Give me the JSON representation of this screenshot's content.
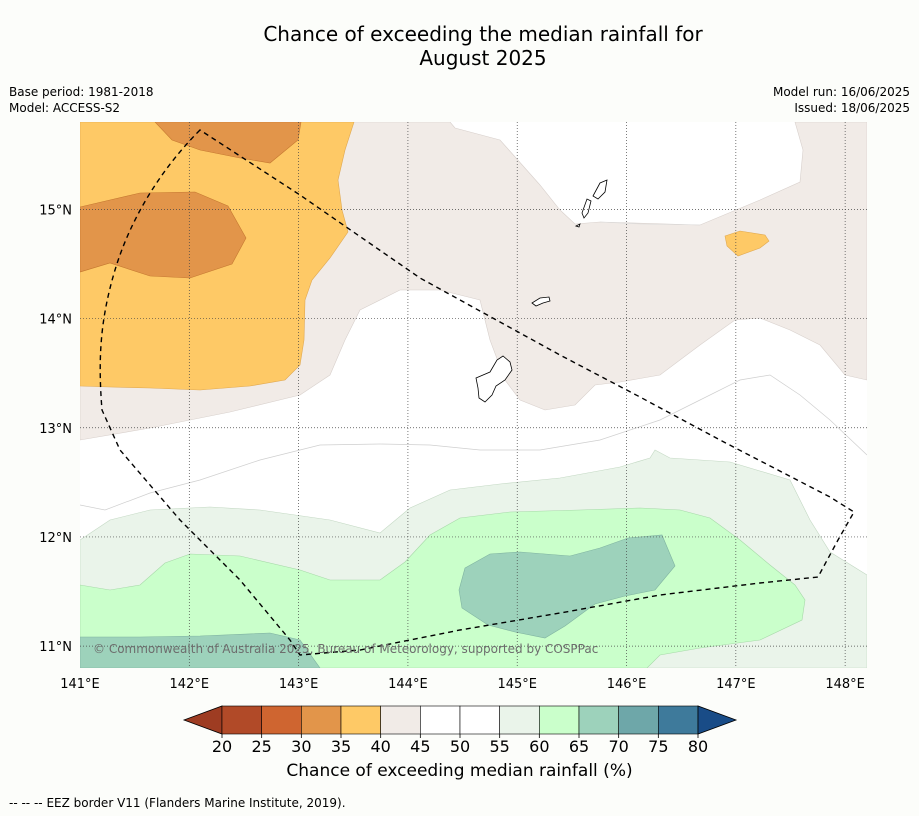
{
  "title": {
    "line1": "Chance of exceeding the median rainfall for",
    "line2": "August 2025"
  },
  "meta": {
    "base_period": "Base period: 1981-2018",
    "model": "Model: ACCESS-S2",
    "model_run": "Model run: 16/06/2025",
    "issued": "Issued: 18/06/2025"
  },
  "map": {
    "lon_range": [
      141.0,
      148.2
    ],
    "lat_range": [
      10.8,
      15.8
    ],
    "lon_ticks": [
      {
        "value": 141,
        "label": "141°E"
      },
      {
        "value": 142,
        "label": "142°E"
      },
      {
        "value": 143,
        "label": "143°E"
      },
      {
        "value": 144,
        "label": "144°E"
      },
      {
        "value": 145,
        "label": "145°E"
      },
      {
        "value": 146,
        "label": "146°E"
      },
      {
        "value": 147,
        "label": "147°E"
      },
      {
        "value": 148,
        "label": "148°E"
      }
    ],
    "lat_ticks": [
      {
        "value": 15,
        "label": "15°N"
      },
      {
        "value": 14,
        "label": "14°N"
      },
      {
        "value": 13,
        "label": "13°N"
      },
      {
        "value": 12,
        "label": "12°N"
      },
      {
        "value": 11,
        "label": "11°N"
      }
    ],
    "gridlines": "dotted",
    "copyright": "© Commonwealth of Australia 2025, Bureau of Meteorology, supported by COSPPac"
  },
  "colorbar": {
    "ticks": [
      "20",
      "25",
      "30",
      "35",
      "40",
      "45",
      "50",
      "55",
      "60",
      "65",
      "70",
      "75",
      "80"
    ],
    "colors": [
      "#b14a28",
      "#cf6530",
      "#e2954a",
      "#fec966",
      "#f1ebe7",
      "#ffffff",
      "#ffffff",
      "#eaf4ea",
      "#caffcb",
      "#9dd2bb",
      "#6ea7a9",
      "#3e7a9b"
    ],
    "under_color": "#9e3c22",
    "over_color": "#194c87",
    "label": "Chance of exceeding median rainfall (%)"
  },
  "legend": {
    "symbol": "--  --  --",
    "text": "EEZ border V11 (Flanders Marine Institute, 2019)."
  }
}
